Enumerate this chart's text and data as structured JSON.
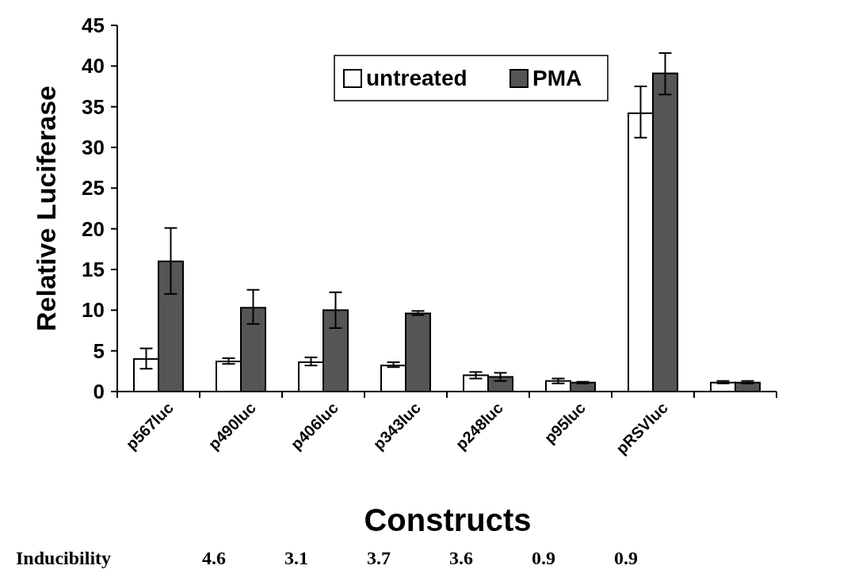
{
  "chart_data": {
    "type": "bar",
    "xlabel": "Constructs",
    "ylabel": "Relative Luciferase",
    "categories": [
      "p567luc",
      "p490luc",
      "p406luc",
      "p343luc",
      "p248luc",
      "p95luc",
      "pRSVluc",
      null
    ],
    "series": [
      {
        "name": "untreated",
        "color": "#ffffff",
        "values": [
          4.0,
          3.7,
          3.6,
          3.2,
          2.0,
          1.3,
          34.2,
          1.1
        ],
        "errors": [
          [
            2.8,
            5.3
          ],
          [
            3.4,
            4.1
          ],
          [
            3.2,
            4.2
          ],
          [
            3.0,
            3.6
          ],
          [
            1.6,
            2.4
          ],
          [
            1.0,
            1.6
          ],
          [
            31.2,
            37.5
          ],
          [
            1.0,
            1.3
          ]
        ]
      },
      {
        "name": "PMA",
        "color": "#555555",
        "values": [
          16.0,
          10.3,
          10.0,
          9.6,
          1.8,
          1.1,
          39.1,
          1.1
        ],
        "errors": [
          [
            12.0,
            20.1
          ],
          [
            8.3,
            12.5
          ],
          [
            7.8,
            12.2
          ],
          [
            9.4,
            9.9
          ],
          [
            1.3,
            2.3
          ],
          [
            1.0,
            1.2
          ],
          [
            36.5,
            41.6
          ],
          [
            1.0,
            1.3
          ]
        ]
      }
    ],
    "ylim": [
      0,
      45
    ],
    "yticks": [
      0,
      5,
      10,
      15,
      20,
      25,
      30,
      35,
      40,
      45
    ],
    "grid": false,
    "legend": "top",
    "annotations": [
      "Inducibility",
      "4.6",
      "3.1",
      "3.7",
      "3.6",
      "0.9",
      "0.9"
    ]
  }
}
